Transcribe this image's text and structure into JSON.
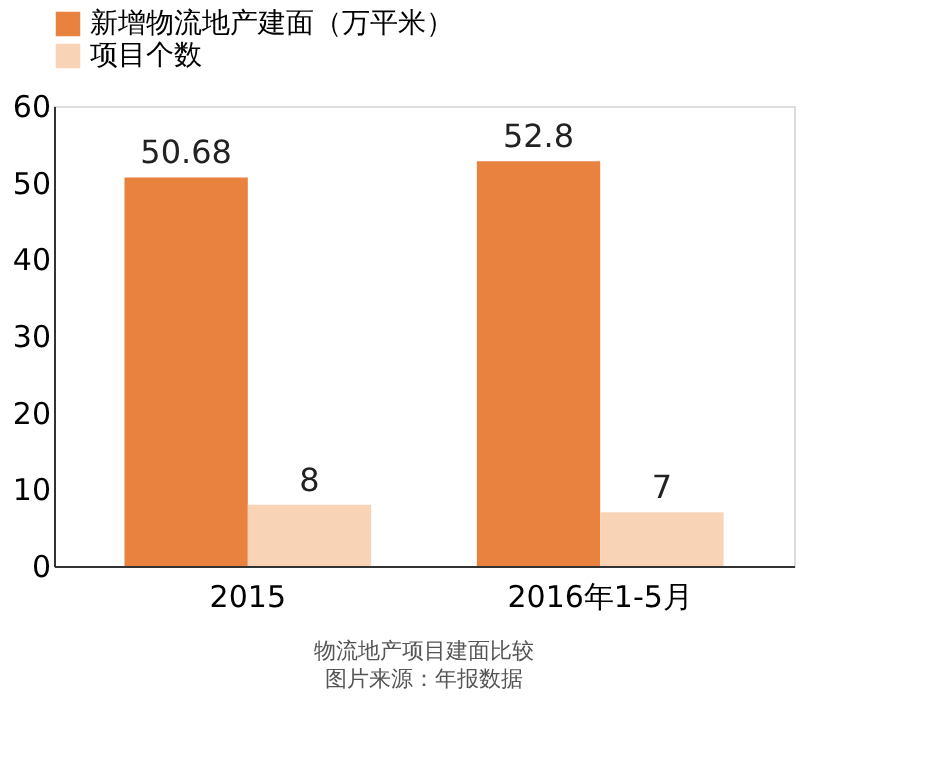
{
  "chart_data": {
    "type": "bar",
    "categories": [
      "2015",
      "2016年1-5月"
    ],
    "series": [
      {
        "name": "新增物流地产建面（万平米）",
        "color": "#e8823e",
        "values": [
          50.68,
          52.8
        ]
      },
      {
        "name": "项目个数",
        "color": "#f9d3b6",
        "values": [
          8,
          7
        ]
      }
    ],
    "ylim": [
      0,
      60
    ],
    "yticks": [
      0,
      10,
      20,
      30,
      40,
      50,
      60
    ],
    "grid": false,
    "legend": "top",
    "data_labels": true,
    "annotations": [
      "物流地产项目建面比较",
      "图片来源：年报数据"
    ]
  }
}
